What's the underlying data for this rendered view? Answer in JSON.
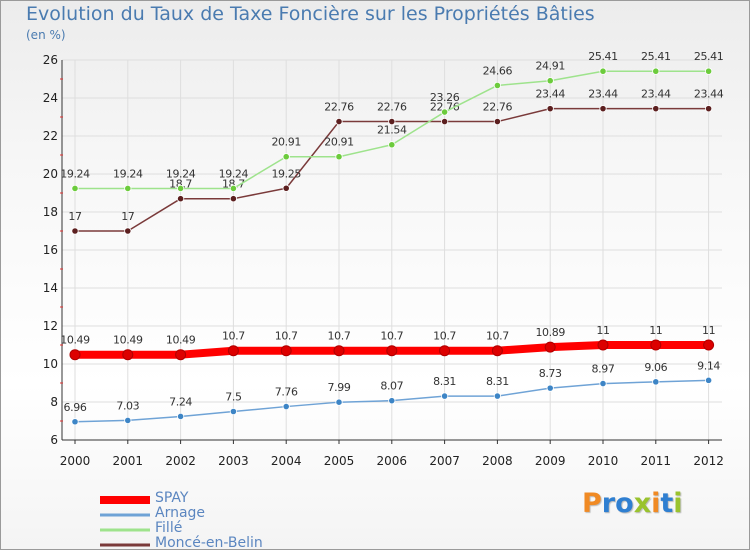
{
  "chart_data": {
    "type": "line",
    "title": "Evolution du Taux de Taxe Foncière sur les Propriétés Bâties",
    "subtitle": "(en %)",
    "x": [
      "2000",
      "2001",
      "2002",
      "2003",
      "2004",
      "2005",
      "2006",
      "2007",
      "2008",
      "2009",
      "2010",
      "2011",
      "2012"
    ],
    "ylim": [
      6,
      26
    ],
    "yticks": [
      6,
      8,
      10,
      12,
      14,
      16,
      18,
      20,
      22,
      24,
      26
    ],
    "grid": true,
    "legend_position": "bottom-left",
    "series": [
      {
        "name": "SPAY",
        "color": "#ff0000",
        "marker": "#dd0000",
        "values": [
          10.49,
          10.49,
          10.49,
          10.7,
          10.7,
          10.7,
          10.7,
          10.7,
          10.7,
          10.89,
          11,
          11,
          11
        ],
        "labels": [
          "10.49",
          "10.49",
          "10.49",
          "10.7",
          "10.7",
          "10.7",
          "10.7",
          "10.7",
          "10.7",
          "10.89",
          "11",
          "11",
          "11"
        ]
      },
      {
        "name": "Arnage",
        "color": "#6fa3d6",
        "marker": "#3d85c6",
        "values": [
          6.96,
          7.03,
          7.24,
          7.5,
          7.76,
          7.99,
          8.07,
          8.31,
          8.31,
          8.73,
          8.97,
          9.06,
          9.14
        ],
        "labels": [
          "6.96",
          "7.03",
          "7.24",
          "7.5",
          "7.76",
          "7.99",
          "8.07",
          "8.31",
          "8.31",
          "8.73",
          "8.97",
          "9.06",
          "9.14"
        ]
      },
      {
        "name": "Fillé",
        "color": "#9ee38c",
        "marker": "#6ccb3c",
        "values": [
          19.24,
          19.24,
          19.24,
          19.24,
          20.91,
          20.91,
          21.54,
          23.26,
          24.66,
          24.91,
          25.41,
          25.41,
          25.41
        ],
        "labels": [
          "19.24",
          "19.24",
          "19.24",
          "19.24",
          "20.91",
          "20.91",
          "21.54",
          "23.26",
          "24.66",
          "24.91",
          "25.41",
          "25.41",
          "25.41"
        ]
      },
      {
        "name": "Moncé-en-Belin",
        "color": "#7a3a3a",
        "marker": "#5c1f1f",
        "values": [
          17,
          17,
          18.7,
          18.7,
          19.25,
          22.76,
          22.76,
          22.76,
          22.76,
          23.44,
          23.44,
          23.44,
          23.44
        ],
        "labels": [
          "17",
          "17",
          "18.7",
          "18.7",
          "19.25",
          "22.76",
          "22.76",
          "22.76",
          "22.76",
          "23.44",
          "23.44",
          "23.44",
          "23.44"
        ]
      }
    ]
  },
  "logo": {
    "letters": [
      "P",
      "r",
      "o",
      "x",
      "i",
      "t",
      "i"
    ],
    "colors": [
      "#f08a24",
      "#2f7fd1",
      "#2f7fd1",
      "#9ac32e",
      "#f08a24",
      "#2f7fd1",
      "#9ac32e"
    ]
  }
}
